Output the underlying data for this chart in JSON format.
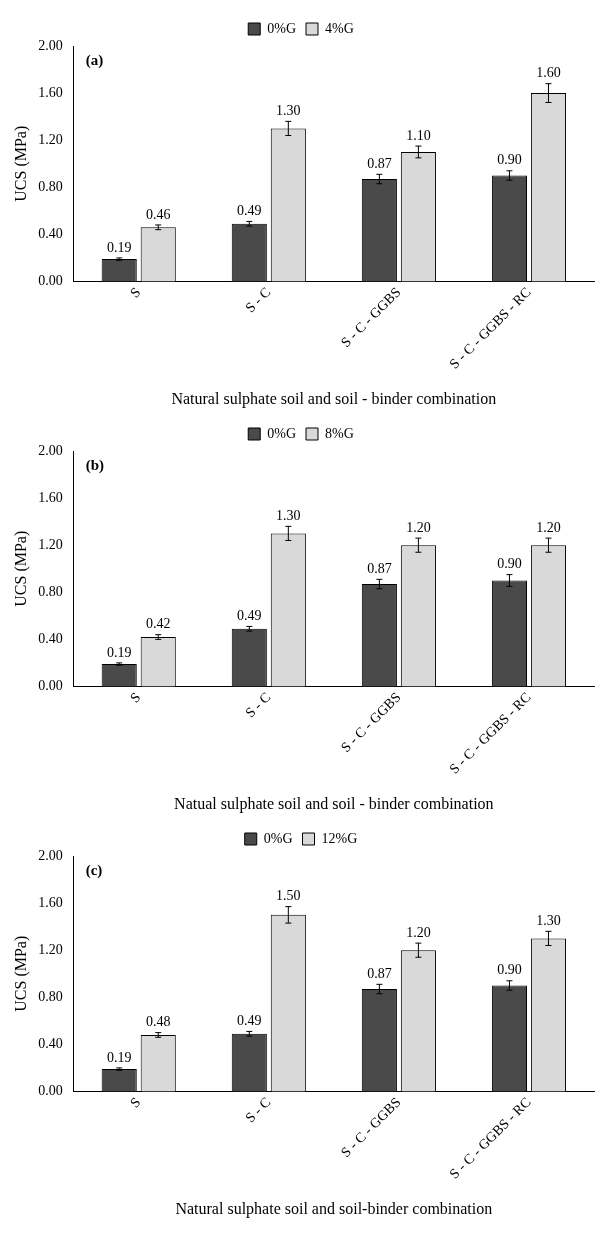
{
  "chart_data": [
    {
      "type": "bar",
      "annotations": [
        "(a)"
      ],
      "xlabel": "Natural sulphate soil and soil - binder combination",
      "ylabel": "UCS (MPa)",
      "categories": [
        "S",
        "S - C",
        "S - C - GGBS",
        "S - C - GGBS - RC"
      ],
      "ylim": [
        0,
        2
      ],
      "yticks": [
        {
          "value": 0,
          "label": "0.00"
        },
        {
          "value": 0.4,
          "label": "0.40"
        },
        {
          "value": 0.8,
          "label": "0.80"
        },
        {
          "value": 1.2,
          "label": "1.20"
        },
        {
          "value": 1.6,
          "label": "1.60"
        },
        {
          "value": 2,
          "label": "2.00"
        }
      ],
      "legend": "top",
      "grid": false,
      "series": [
        {
          "name": "0%G",
          "color": "#4a4a4a",
          "values": [
            0.19,
            0.49,
            0.87,
            0.9
          ],
          "errors": [
            0.01,
            0.02,
            0.04,
            0.04
          ],
          "value_labels": [
            "0.19",
            "0.49",
            "0.87",
            "0.90"
          ]
        },
        {
          "name": "4%G",
          "color": "#d9d9d9",
          "values": [
            0.46,
            1.3,
            1.1,
            1.6
          ],
          "errors": [
            0.02,
            0.06,
            0.05,
            0.08
          ],
          "value_labels": [
            "0.46",
            "1.30",
            "1.10",
            "1.60"
          ]
        }
      ]
    },
    {
      "type": "bar",
      "annotations": [
        "(b)"
      ],
      "xlabel": "Natual sulphate soil and soil - binder combination",
      "ylabel": "UCS (MPa)",
      "categories": [
        "S",
        "S - C",
        "S - C - GGBS",
        "S - C - GGBS - RC"
      ],
      "ylim": [
        0,
        2
      ],
      "yticks": [
        {
          "value": 0,
          "label": "0.00"
        },
        {
          "value": 0.4,
          "label": "0.40"
        },
        {
          "value": 0.8,
          "label": "0.80"
        },
        {
          "value": 1.2,
          "label": "1.20"
        },
        {
          "value": 1.6,
          "label": "1.60"
        },
        {
          "value": 2,
          "label": "2.00"
        }
      ],
      "legend": "top",
      "grid": false,
      "series": [
        {
          "name": "0%G",
          "color": "#4a4a4a",
          "values": [
            0.19,
            0.49,
            0.87,
            0.9
          ],
          "errors": [
            0.01,
            0.02,
            0.04,
            0.05
          ],
          "value_labels": [
            "0.19",
            "0.49",
            "0.87",
            "0.90"
          ]
        },
        {
          "name": "8%G",
          "color": "#d9d9d9",
          "values": [
            0.42,
            1.3,
            1.2,
            1.2
          ],
          "errors": [
            0.02,
            0.06,
            0.06,
            0.06
          ],
          "value_labels": [
            "0.42",
            "1.30",
            "1.20",
            "1.20"
          ]
        }
      ]
    },
    {
      "type": "bar",
      "annotations": [
        "(c)"
      ],
      "xlabel": "Natural sulphate soil and soil-binder combination",
      "ylabel": "UCS (MPa)",
      "categories": [
        "S",
        "S - C",
        "S - C - GGBS",
        "S - C - GGBS - RC"
      ],
      "ylim": [
        0,
        2
      ],
      "yticks": [
        {
          "value": 0,
          "label": "0.00"
        },
        {
          "value": 0.4,
          "label": "0.40"
        },
        {
          "value": 0.8,
          "label": "0.80"
        },
        {
          "value": 1.2,
          "label": "1.20"
        },
        {
          "value": 1.6,
          "label": "1.60"
        },
        {
          "value": 2,
          "label": "2.00"
        }
      ],
      "legend": "top",
      "grid": false,
      "series": [
        {
          "name": "0%G",
          "color": "#4a4a4a",
          "values": [
            0.19,
            0.49,
            0.87,
            0.9
          ],
          "errors": [
            0.01,
            0.02,
            0.04,
            0.04
          ],
          "value_labels": [
            "0.19",
            "0.49",
            "0.87",
            "0.90"
          ]
        },
        {
          "name": "12%G",
          "color": "#d9d9d9",
          "values": [
            0.48,
            1.5,
            1.2,
            1.3
          ],
          "errors": [
            0.02,
            0.07,
            0.06,
            0.06
          ],
          "value_labels": [
            "0.48",
            "1.50",
            "1.20",
            "1.30"
          ]
        }
      ]
    }
  ]
}
